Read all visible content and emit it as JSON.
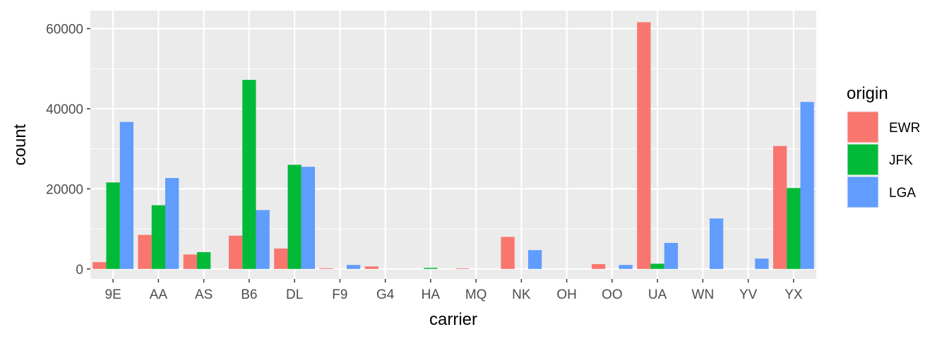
{
  "chart_data": {
    "type": "bar",
    "title": "",
    "xlabel": "carrier",
    "ylabel": "count",
    "categories": [
      "9E",
      "AA",
      "AS",
      "B6",
      "DL",
      "F9",
      "G4",
      "HA",
      "MQ",
      "NK",
      "OH",
      "OO",
      "UA",
      "WN",
      "YV",
      "YX"
    ],
    "series": [
      {
        "name": "EWR",
        "color": "#F8766D",
        "values": [
          1700,
          8500,
          3600,
          8300,
          5100,
          180,
          630,
          0,
          150,
          8000,
          0,
          1200,
          61600,
          0,
          0,
          30700
        ]
      },
      {
        "name": "JFK",
        "color": "#00BA38",
        "values": [
          21600,
          15900,
          4200,
          47200,
          26000,
          0,
          0,
          260,
          0,
          0,
          0,
          0,
          1300,
          0,
          0,
          20200
        ]
      },
      {
        "name": "LGA",
        "color": "#619CFF",
        "values": [
          36700,
          22700,
          0,
          14700,
          25500,
          1000,
          0,
          0,
          0,
          4700,
          0,
          1000,
          6500,
          12600,
          2600,
          41700
        ]
      }
    ],
    "ylim": [
      -2500,
      64500
    ],
    "yticks": [
      0,
      20000,
      40000,
      60000
    ],
    "ytick_labels": [
      "0",
      "20000",
      "40000",
      "60000"
    ],
    "grid": true,
    "legend": {
      "title": "origin",
      "position": "right",
      "entries": [
        "EWR",
        "JFK",
        "LGA"
      ]
    },
    "colors": {
      "panel": "#EBEBEB",
      "grid": "#FFFFFF"
    }
  }
}
